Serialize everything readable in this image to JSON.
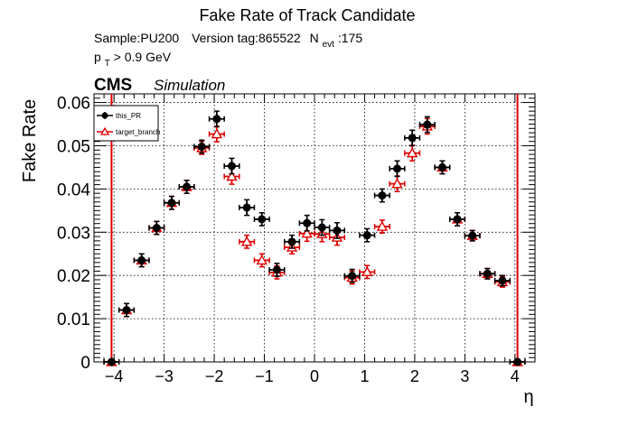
{
  "chart_data": {
    "type": "scatter",
    "title": "Fake Rate of Track Candidate",
    "info_line1": {
      "sample": "Sample:PU200",
      "version": "Version tag:865522",
      "nevt_main": "N",
      "nevt_sub": "evt",
      "nevt_value": ":175"
    },
    "info_line2": {
      "pt_main": "p",
      "pt_sub": "T",
      "pt_cut": " > 0.9 GeV"
    },
    "cms_label": "CMS",
    "cms_sublabel": "Simulation",
    "xlabel": "η",
    "ylabel": "Fake Rate",
    "xlim": [
      -4.4,
      4.4
    ],
    "ylim": [
      0,
      0.062
    ],
    "x_ticks": [
      -4,
      -3,
      -2,
      -1,
      0,
      1,
      2,
      3,
      4
    ],
    "x_tick_labels": [
      "−4",
      "−3",
      "−2",
      "−1",
      "0",
      "1",
      "2",
      "3",
      "4"
    ],
    "y_ticks": [
      0,
      0.01,
      0.02,
      0.03,
      0.04,
      0.05,
      0.06
    ],
    "y_tick_labels": [
      "0",
      "0.01",
      "0.02",
      "0.03",
      "0.04",
      "0.05",
      "0.06"
    ],
    "grid": true,
    "legend_position": "top-left",
    "x_half_width": 0.15,
    "series": [
      {
        "name": "this_PR",
        "color": "#000000",
        "marker": "filled-circle",
        "x": [
          -4.05,
          -3.75,
          -3.45,
          -3.15,
          -2.85,
          -2.55,
          -2.25,
          -1.95,
          -1.65,
          -1.35,
          -1.05,
          -0.75,
          -0.45,
          -0.15,
          0.15,
          0.45,
          0.75,
          1.05,
          1.35,
          1.65,
          1.95,
          2.25,
          2.55,
          2.85,
          3.15,
          3.45,
          3.75,
          4.05
        ],
        "y": [
          0.0,
          0.012,
          0.0235,
          0.031,
          0.0368,
          0.0405,
          0.0498,
          0.0562,
          0.0453,
          0.0357,
          0.033,
          0.0213,
          0.0278,
          0.0321,
          0.0311,
          0.0304,
          0.0199,
          0.0293,
          0.0385,
          0.0447,
          0.0518,
          0.0549,
          0.045,
          0.033,
          0.0292,
          0.0204,
          0.0188,
          0.0
        ],
        "yerr": [
          0.0004,
          0.0015,
          0.0015,
          0.0015,
          0.0015,
          0.0015,
          0.0015,
          0.0018,
          0.0018,
          0.0018,
          0.0015,
          0.0015,
          0.0015,
          0.0018,
          0.0018,
          0.0018,
          0.0015,
          0.0015,
          0.0015,
          0.0018,
          0.0018,
          0.0018,
          0.0015,
          0.0015,
          0.0012,
          0.0012,
          0.0012,
          0.0004
        ]
      },
      {
        "name": "target_branch",
        "color": "#e00000",
        "marker": "open-triangle",
        "x": [
          -4.05,
          -3.75,
          -3.45,
          -3.15,
          -2.85,
          -2.55,
          -2.25,
          -1.95,
          -1.65,
          -1.35,
          -1.05,
          -0.75,
          -0.45,
          -0.15,
          0.15,
          0.45,
          0.75,
          1.05,
          1.35,
          1.65,
          1.95,
          2.25,
          2.55,
          2.85,
          3.15,
          3.45,
          3.75,
          4.05
        ],
        "y": [
          0.0,
          0.012,
          0.0235,
          0.031,
          0.0368,
          0.0405,
          0.0495,
          0.0527,
          0.0429,
          0.0278,
          0.0235,
          0.0207,
          0.0265,
          0.0297,
          0.0296,
          0.0288,
          0.0195,
          0.0208,
          0.0313,
          0.0412,
          0.0483,
          0.0545,
          0.045,
          0.033,
          0.0292,
          0.0204,
          0.0185,
          0.0
        ],
        "yerr": [
          0.0004,
          0.0015,
          0.0015,
          0.0015,
          0.0015,
          0.0015,
          0.0015,
          0.0018,
          0.0018,
          0.0015,
          0.0015,
          0.0015,
          0.0015,
          0.0018,
          0.0018,
          0.0018,
          0.0015,
          0.0015,
          0.0015,
          0.0018,
          0.0018,
          0.0018,
          0.0015,
          0.0015,
          0.0012,
          0.0012,
          0.0012,
          0.0004
        ]
      }
    ],
    "vertical_lines": {
      "color": "#e00000",
      "x": [
        -4.05,
        4.05
      ]
    }
  }
}
